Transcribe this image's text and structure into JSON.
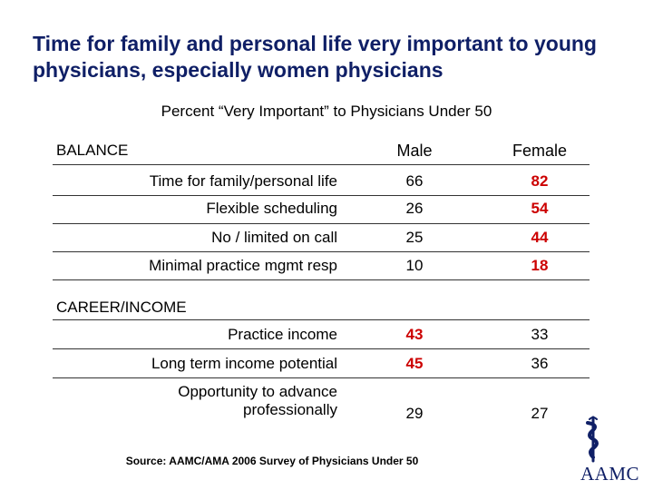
{
  "title": "Time for family and personal life very important to young physicians, especially women physicians",
  "subtitle": "Percent “Very Important” to Physicians Under 50",
  "columns": {
    "male": "Male",
    "female": "Female"
  },
  "balance": {
    "heading": "BALANCE",
    "rows": [
      {
        "label": "Time for family/personal life",
        "male": "66",
        "female": "82"
      },
      {
        "label": "Flexible scheduling",
        "male": "26",
        "female": "54"
      },
      {
        "label": "No / limited on call",
        "male": "25",
        "female": "44"
      },
      {
        "label": "Minimal practice mgmt resp",
        "male": "10",
        "female": "18"
      }
    ]
  },
  "career": {
    "heading": "CAREER/INCOME",
    "rows": [
      {
        "label": "Practice income",
        "male": "43",
        "female": "33"
      },
      {
        "label": "Long term income potential",
        "male": "45",
        "female": "36"
      },
      {
        "label": "Opportunity to advance professionally",
        "male": "29",
        "female": "27"
      }
    ]
  },
  "source": "Source:  AAMC/AMA 2006 Survey of Physicians Under 50",
  "logo": {
    "text": "AAMC",
    "icon": "caduceus-icon"
  },
  "colors": {
    "title": "#0f1f66",
    "highlight": "#cc0000",
    "rule": "#333333"
  }
}
